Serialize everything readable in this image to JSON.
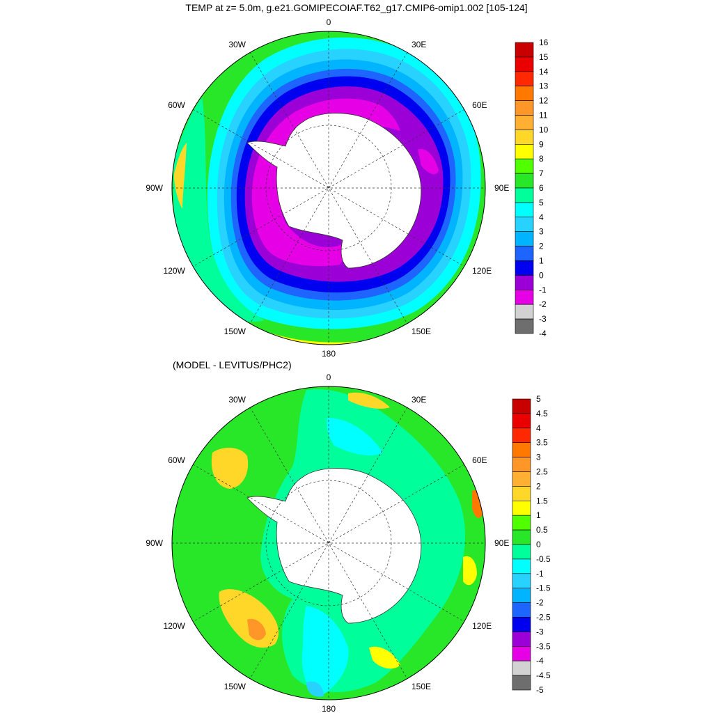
{
  "title": "TEMP at z=   5.0m, g.e21.GOMIPECOIAF.T62_g17.CMIP6-omip1.002 [105-124]",
  "subtitle": "(MODEL - LEVITUS/PHC2)",
  "land_color": "#ffffff",
  "colors": [
    "#6e6e6e",
    "#d2d2d2",
    "#e600e6",
    "#9b00d7",
    "#0000f0",
    "#1e64ff",
    "#00b4ff",
    "#28d2ff",
    "#00ffff",
    "#00ff9b",
    "#28e628",
    "#50ff00",
    "#ffff00",
    "#ffd728",
    "#ffaf32",
    "#ff9628",
    "#ff7800",
    "#ff2800",
    "#eb0000",
    "#c80000"
  ],
  "chart_data": [
    {
      "type": "heatmap",
      "name": "temperature",
      "projection": "south-polar-stereographic",
      "lon_labels": [
        "0",
        "30E",
        "60E",
        "90E",
        "120E",
        "150E",
        "180",
        "150W",
        "120W",
        "90W",
        "60W",
        "30W"
      ],
      "colorbar_levels": [
        "16",
        "15",
        "14",
        "13",
        "12",
        "11",
        "10",
        "9",
        "8",
        "7",
        "6",
        "5",
        "4",
        "3",
        "2",
        "1",
        "0",
        "-1",
        "-2",
        "-3",
        "-4"
      ],
      "colorbar_colors": [
        "#c80000",
        "#eb0000",
        "#ff2800",
        "#ff7800",
        "#ff9628",
        "#ffaf32",
        "#ffd728",
        "#ffff00",
        "#50ff00",
        "#28e628",
        "#00ff9b",
        "#00ffff",
        "#28d2ff",
        "#00b4ff",
        "#1e64ff",
        "#0000f0",
        "#9b00d7",
        "#e600e6",
        "#d2d2d2",
        "#6e6e6e"
      ],
      "range": [
        -4,
        16
      ]
    },
    {
      "type": "heatmap",
      "name": "difference",
      "projection": "south-polar-stereographic",
      "lon_labels": [
        "0",
        "30E",
        "60E",
        "90E",
        "120E",
        "150E",
        "180",
        "150W",
        "120W",
        "90W",
        "60W",
        "30W"
      ],
      "colorbar_levels": [
        "5",
        "4.5",
        "4",
        "3.5",
        "3",
        "2.5",
        "2",
        "1.5",
        "1",
        "0.5",
        "0",
        "-0.5",
        "-1",
        "-1.5",
        "-2",
        "-2.5",
        "-3",
        "-3.5",
        "-4",
        "-4.5",
        "-5"
      ],
      "colorbar_colors": [
        "#c80000",
        "#eb0000",
        "#ff2800",
        "#ff7800",
        "#ff9628",
        "#ffaf32",
        "#ffd728",
        "#ffff00",
        "#50ff00",
        "#28e628",
        "#00ff9b",
        "#00ffff",
        "#28d2ff",
        "#00b4ff",
        "#1e64ff",
        "#0000f0",
        "#9b00d7",
        "#e600e6",
        "#d2d2d2",
        "#6e6e6e"
      ],
      "range": [
        -5,
        5
      ]
    }
  ]
}
